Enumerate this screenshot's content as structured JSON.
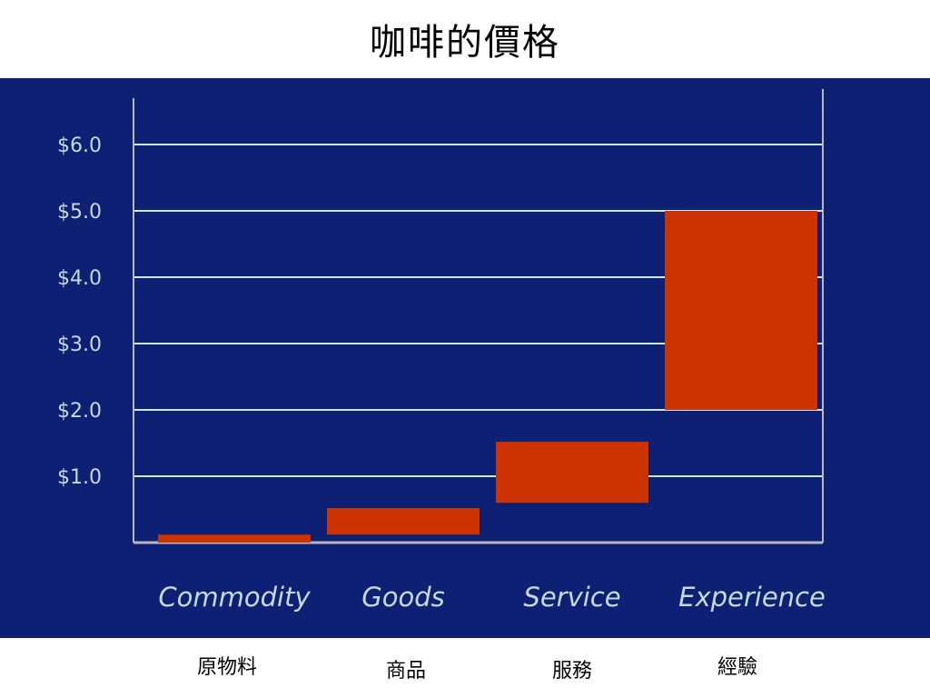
{
  "title": "咖啡的價格",
  "colors": {
    "panel_bg": "#0d2073",
    "grid": "#cfe8f0",
    "axis": "#b8b8b8",
    "bar": "#cc3300",
    "label": "#c8d8e0"
  },
  "chart_data": {
    "type": "bar",
    "subtype": "floating-range",
    "categories": [
      "Commodity",
      "Goods",
      "Service",
      "Experience"
    ],
    "ranges": [
      {
        "category": "Commodity",
        "low": 0.0,
        "high": 0.12
      },
      {
        "category": "Goods",
        "low": 0.12,
        "high": 0.52
      },
      {
        "category": "Service",
        "low": 0.6,
        "high": 1.52
      },
      {
        "category": "Experience",
        "low": 2.0,
        "high": 5.0
      }
    ],
    "yticks": [
      {
        "value": 1,
        "label": "$1.0"
      },
      {
        "value": 2,
        "label": "$2.0"
      },
      {
        "value": 3,
        "label": "$3.0"
      },
      {
        "value": 4,
        "label": "$4.0"
      },
      {
        "value": 5,
        "label": "$5.0"
      },
      {
        "value": 6,
        "label": "$6.0"
      }
    ],
    "ylim": [
      0,
      6.7
    ],
    "grid": true
  },
  "category_labels_zh": [
    "原物料",
    "商品",
    "服務",
    "經驗"
  ]
}
